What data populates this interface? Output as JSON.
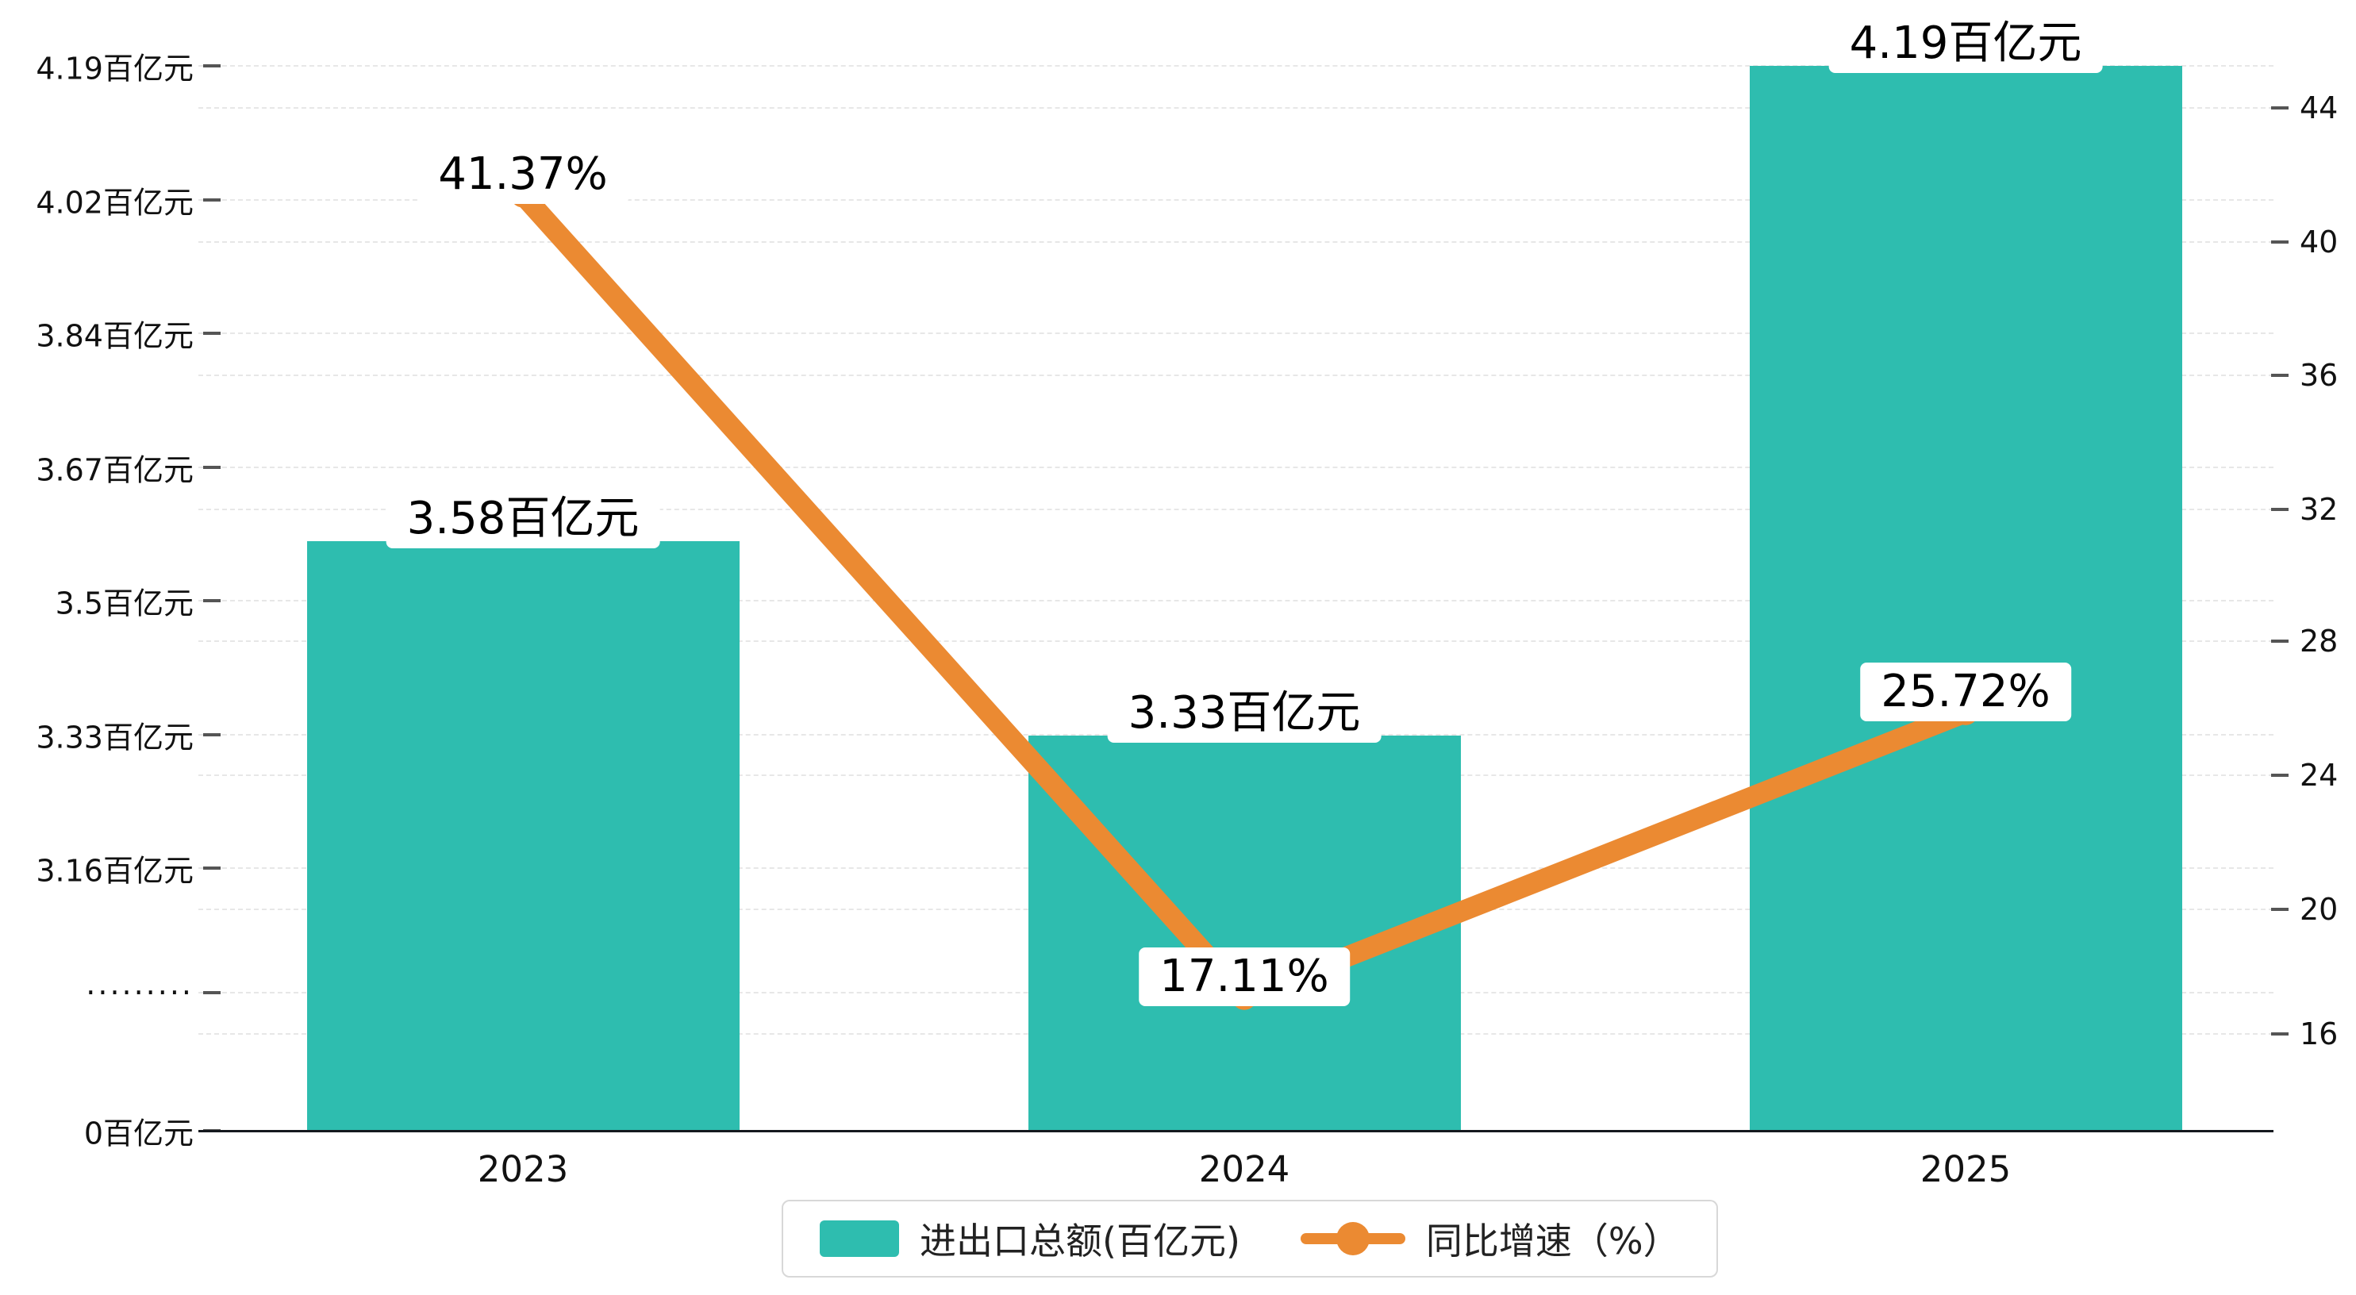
{
  "chart_data": {
    "type": "bar",
    "combo": "bar+line dual axis",
    "categories": [
      "2023",
      "2024",
      "2025"
    ],
    "series": [
      {
        "name": "进出口总额(百亿元)",
        "type": "bar",
        "color": "#2EBDAF",
        "values": [
          3.58,
          3.33,
          4.19
        ],
        "labels": [
          "3.58百亿元",
          "3.33百亿元",
          "4.19百亿元"
        ]
      },
      {
        "name": "同比增速（%）",
        "type": "line",
        "color": "#EB8A32",
        "values": [
          41.37,
          17.11,
          25.72
        ],
        "labels": [
          "41.37%",
          "17.11%",
          "25.72%"
        ]
      }
    ],
    "left_axis": {
      "unit": "百亿元",
      "axis_break": true,
      "ticks": [
        "4.19百亿元",
        "4.02百亿元",
        "3.84百亿元",
        "3.67百亿元",
        "3.5百亿元",
        "3.33百亿元",
        "3.16百亿元",
        "·········",
        "0百亿元"
      ]
    },
    "right_axis": {
      "ticks": [
        "44",
        "40",
        "36",
        "32",
        "28",
        "24",
        "20",
        "16"
      ],
      "range": [
        16,
        44
      ]
    },
    "title": "",
    "xlabel": "",
    "ylabel": "",
    "grid": true,
    "legend_position": "bottom"
  }
}
